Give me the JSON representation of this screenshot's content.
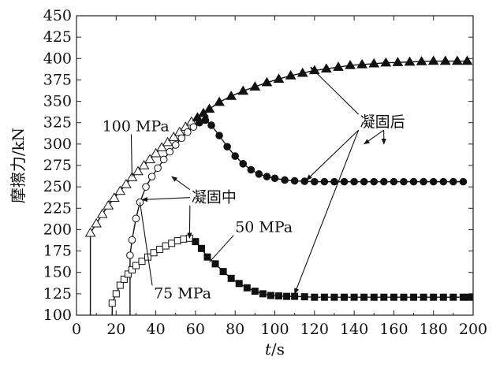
{
  "chart_data": {
    "type": "line",
    "xlabel_italic": "t",
    "xlabel_unit": "/s",
    "ylabel": "摩擦力/kN",
    "xlim": [
      0,
      200
    ],
    "ylim": [
      100,
      450
    ],
    "xticks": [
      0,
      20,
      40,
      60,
      80,
      100,
      120,
      140,
      160,
      180,
      200
    ],
    "yticks": [
      100,
      125,
      150,
      175,
      200,
      225,
      250,
      275,
      300,
      325,
      350,
      375,
      400,
      425,
      450
    ],
    "grid": false,
    "legend": "none",
    "series": [
      {
        "name": "100 MPa",
        "marker": "triangle",
        "x": [
          7,
          7,
          10,
          13,
          16,
          19,
          22,
          25,
          28,
          31,
          34,
          37,
          40,
          43,
          46,
          49,
          52,
          55,
          58,
          61,
          64,
          67,
          72,
          78,
          84,
          90,
          96,
          102,
          108,
          114,
          120,
          126,
          132,
          138,
          144,
          150,
          156,
          162,
          168,
          174,
          180,
          186,
          192,
          197
        ],
        "y": [
          100,
          196,
          207,
          218,
          228,
          237,
          245,
          253,
          261,
          268,
          275,
          282,
          289,
          296,
          302,
          308,
          314,
          320,
          326,
          331,
          336,
          341,
          349,
          356,
          362,
          367,
          372,
          376,
          380,
          383,
          386,
          388,
          390,
          392,
          393,
          394,
          395,
          395.5,
          396,
          396.5,
          397,
          397,
          397,
          397
        ]
      },
      {
        "name": "75 MPa",
        "marker": "circle",
        "x": [
          27,
          27,
          28,
          30,
          32,
          35,
          38,
          41,
          44,
          47,
          50,
          53,
          56,
          59,
          62,
          65,
          68,
          72,
          76,
          80,
          84,
          88,
          92,
          96,
          100,
          105,
          110,
          115,
          120,
          125,
          130,
          135,
          140,
          145,
          150,
          155,
          160,
          165,
          170,
          175,
          180,
          185,
          190,
          195
        ],
        "y": [
          100,
          170,
          188,
          213,
          232,
          250,
          262,
          272,
          282,
          291,
          299,
          307,
          314,
          320,
          325,
          328,
          322,
          310,
          297,
          286,
          277,
          270,
          265,
          262,
          260,
          258,
          257,
          256.5,
          256,
          256,
          256,
          256,
          256,
          256,
          256,
          256,
          256,
          256,
          256,
          256,
          256,
          256,
          256,
          256
        ]
      },
      {
        "name": "50 MPa",
        "marker": "square",
        "x": [
          18,
          18,
          20,
          22,
          24,
          26,
          28,
          30,
          33,
          36,
          39,
          42,
          45,
          48,
          51,
          54,
          57,
          60,
          63,
          66,
          70,
          74,
          78,
          82,
          86,
          90,
          94,
          98,
          102,
          106,
          110,
          115,
          120,
          125,
          130,
          135,
          140,
          145,
          150,
          155,
          160,
          165,
          170,
          175,
          180,
          185,
          190,
          195,
          198
        ],
        "y": [
          100,
          114,
          125,
          135,
          142,
          148,
          153,
          158,
          163,
          168,
          173,
          177,
          181,
          184,
          187,
          189,
          190,
          186,
          178,
          168,
          160,
          151,
          143,
          137,
          132,
          128,
          125,
          123,
          122.5,
          122,
          122,
          121.5,
          121,
          121,
          121,
          121,
          121,
          121,
          121,
          121,
          121,
          121,
          121,
          121,
          121,
          121,
          121,
          121,
          121
        ]
      }
    ],
    "annotations": [
      {
        "text": "100 MPa",
        "at": [
          13,
          315
        ],
        "arrow_to": [
          28,
          262
        ]
      },
      {
        "text": "75 MPa",
        "at": [
          39,
          120
        ],
        "arrow_to": [
          32,
          232
        ]
      },
      {
        "text": "50 MPa",
        "at": [
          80,
          197
        ],
        "arrow_to": [
          67,
          162
        ]
      },
      {
        "text": "凝固中",
        "at": [
          58,
          232
        ],
        "arrows_to": [
          [
            33,
            235
          ],
          [
            48,
            262
          ],
          [
            57,
            190
          ]
        ]
      },
      {
        "text": "凝固后",
        "at": [
          143,
          320
        ],
        "arrows_to": [
          [
            118,
            390
          ],
          [
            145,
            300
          ],
          [
            116,
            258
          ],
          [
            155,
            300
          ],
          [
            110,
            125
          ]
        ]
      }
    ]
  }
}
